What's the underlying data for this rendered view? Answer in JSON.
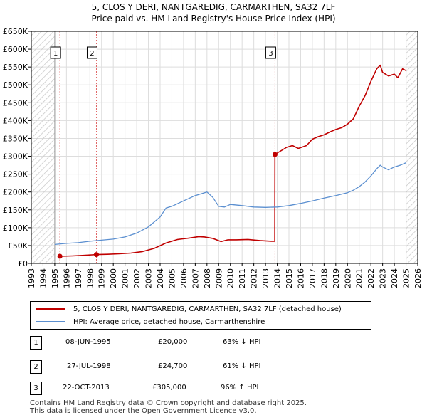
{
  "title_line1": "5, CLOS Y DERI, NANTGAREDIG, CARMARTHEN, SA32 7LF",
  "title_line2": "Price paid vs. HM Land Registry's House Price Index (HPI)",
  "colors": {
    "property": "#c00000",
    "hpi": "#5b8fd0",
    "hatch": "#c8c8c8",
    "grid": "#dddddd",
    "sale_vline": "#e06666"
  },
  "chart_data": {
    "type": "line",
    "xlim": [
      1993,
      2026
    ],
    "ylim": [
      0,
      650000
    ],
    "x_ticks": [
      "1993",
      "1994",
      "1995",
      "1996",
      "1997",
      "1998",
      "1999",
      "2000",
      "2001",
      "2002",
      "2003",
      "2004",
      "2005",
      "2006",
      "2007",
      "2008",
      "2009",
      "2010",
      "2011",
      "2012",
      "2013",
      "2014",
      "2015",
      "2016",
      "2017",
      "2018",
      "2019",
      "2020",
      "2021",
      "2022",
      "2023",
      "2024",
      "2025",
      "2026"
    ],
    "y_ticks": [
      0,
      50000,
      100000,
      150000,
      200000,
      250000,
      300000,
      350000,
      400000,
      450000,
      500000,
      550000,
      600000,
      650000
    ],
    "y_tick_labels": [
      "£0",
      "£50K",
      "£100K",
      "£150K",
      "£200K",
      "£250K",
      "£300K",
      "£350K",
      "£400K",
      "£450K",
      "£500K",
      "£550K",
      "£600K",
      "£650K"
    ],
    "hatched_ranges": [
      [
        1993,
        1995.0
      ],
      [
        2025.0,
        2026
      ]
    ],
    "series": [
      {
        "name": "5, CLOS Y DERI, NANTGAREDIG, CARMARTHEN, SA32 7LF (detached house)",
        "color": "#c00000",
        "x": [
          1995.44,
          1996.5,
          1997.5,
          1998.56,
          1999.5,
          2000.5,
          2001.5,
          2002.5,
          2003.5,
          2004.5,
          2005.5,
          2006.5,
          2007.3,
          2007.8,
          2008.5,
          2009.2,
          2009.8,
          2010.5,
          2011.5,
          2012.5,
          2013.5,
          2013.79,
          2013.8,
          2014.3,
          2014.8,
          2015.3,
          2015.8,
          2016.5,
          2017.0,
          2017.5,
          2018.0,
          2018.5,
          2019.0,
          2019.5,
          2020.0,
          2020.5,
          2021.0,
          2021.5,
          2022.0,
          2022.5,
          2022.8,
          2023.0,
          2023.5,
          2024.0,
          2024.3,
          2024.7,
          2025.0
        ],
        "y": [
          20000,
          21000,
          22500,
          24700,
          25500,
          27000,
          29000,
          33000,
          42000,
          57000,
          67000,
          71000,
          75000,
          74000,
          70000,
          61000,
          66000,
          66000,
          67000,
          64000,
          62000,
          62000,
          305000,
          315000,
          325000,
          330000,
          322000,
          330000,
          348000,
          355000,
          360000,
          368000,
          375000,
          380000,
          390000,
          405000,
          440000,
          470000,
          510000,
          545000,
          555000,
          535000,
          525000,
          530000,
          520000,
          545000,
          540000
        ]
      },
      {
        "name": "HPI: Average price, detached house, Carmarthenshire",
        "color": "#5b8fd0",
        "x": [
          1995.0,
          1996.0,
          1997.0,
          1998.0,
          1999.0,
          2000.0,
          2001.0,
          2002.0,
          2003.0,
          2004.0,
          2004.5,
          2005.0,
          2006.0,
          2007.0,
          2007.5,
          2008.0,
          2008.5,
          2009.0,
          2009.5,
          2010.0,
          2011.0,
          2012.0,
          2013.0,
          2014.0,
          2015.0,
          2016.0,
          2017.0,
          2018.0,
          2019.0,
          2020.0,
          2020.5,
          2021.0,
          2021.5,
          2022.0,
          2022.5,
          2022.8,
          2023.0,
          2023.5,
          2024.0,
          2024.5,
          2025.0
        ],
        "y": [
          53000,
          56000,
          58000,
          62000,
          65000,
          68000,
          74000,
          85000,
          102000,
          130000,
          155000,
          160000,
          175000,
          190000,
          195000,
          200000,
          185000,
          160000,
          158000,
          165000,
          162000,
          158000,
          157000,
          158000,
          162000,
          168000,
          175000,
          183000,
          190000,
          198000,
          205000,
          215000,
          228000,
          245000,
          265000,
          275000,
          270000,
          262000,
          270000,
          275000,
          282000
        ]
      }
    ],
    "sales_markers": [
      {
        "label": "1",
        "x": 1995.44,
        "y": 20000
      },
      {
        "label": "2",
        "x": 1998.56,
        "y": 24700
      },
      {
        "label": "3",
        "x": 2013.81,
        "y": 305000
      }
    ]
  },
  "legend": {
    "property_label": "5, CLOS Y DERI, NANTGAREDIG, CARMARTHEN, SA32 7LF (detached house)",
    "hpi_label": "HPI: Average price, detached house, Carmarthenshire"
  },
  "sales": [
    {
      "num": "1",
      "date": "08-JUN-1995",
      "price": "£20,000",
      "hpi": "63% ↓ HPI"
    },
    {
      "num": "2",
      "date": "27-JUL-1998",
      "price": "£24,700",
      "hpi": "61% ↓ HPI"
    },
    {
      "num": "3",
      "date": "22-OCT-2013",
      "price": "£305,000",
      "hpi": "96% ↑ HPI"
    }
  ],
  "footer_line1": "Contains HM Land Registry data © Crown copyright and database right 2025.",
  "footer_line2": "This data is licensed under the Open Government Licence v3.0."
}
